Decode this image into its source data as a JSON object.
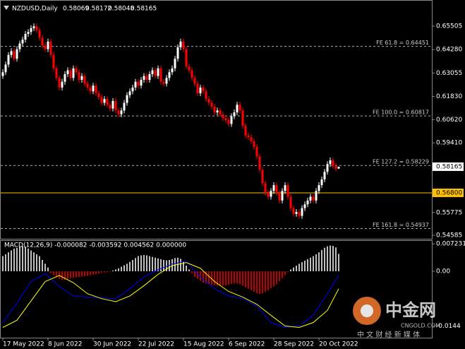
{
  "chart_data": [
    {
      "type": "candlestick",
      "title": "NZDUSD,Daily",
      "categories": [
        "17 May 2022",
        null,
        null,
        null,
        null,
        null,
        null,
        null,
        null,
        null,
        null,
        null,
        null,
        null,
        null,
        null,
        "8 Jun 2022",
        null,
        null,
        null,
        null,
        null,
        null,
        null,
        null,
        null,
        null,
        null,
        null,
        null,
        null,
        null,
        "30 Jun 2022",
        null,
        null,
        null,
        null,
        null,
        null,
        null,
        null,
        null,
        null,
        null,
        null,
        null,
        null,
        null,
        "22 Jul 2022",
        null,
        null,
        null,
        null,
        null,
        null,
        null,
        null,
        null,
        null,
        null,
        null,
        null,
        null,
        null,
        "15 Aug 2022",
        null,
        null,
        null,
        null,
        null,
        null,
        null,
        null,
        null,
        null,
        null,
        null,
        null,
        null,
        null,
        "6 Sep 2022",
        null,
        null,
        null,
        null,
        null,
        null,
        null,
        null,
        null,
        null,
        null,
        null,
        null,
        null,
        null,
        "28 Sep 2022",
        null,
        null,
        null,
        null,
        null,
        null,
        null,
        null,
        null,
        null,
        null,
        null,
        null,
        null,
        null,
        "20 Oct 2022",
        null,
        null,
        null,
        null,
        null,
        null,
        null
      ],
      "candles": [
        [
          0.629,
          0.6325,
          0.6275,
          0.631
        ],
        [
          0.631,
          0.6365,
          0.6295,
          0.635
        ],
        [
          0.635,
          0.6415,
          0.6335,
          0.64
        ],
        [
          0.64,
          0.6435,
          0.6385,
          0.642
        ],
        [
          0.642,
          0.6435,
          0.6365,
          0.638
        ],
        [
          0.638,
          0.6445,
          0.6365,
          0.643
        ],
        [
          0.643,
          0.6475,
          0.6415,
          0.646
        ],
        [
          0.646,
          0.6495,
          0.6445,
          0.648
        ],
        [
          0.648,
          0.6525,
          0.6465,
          0.651
        ],
        [
          0.651,
          0.6535,
          0.6495,
          0.652
        ],
        [
          0.652,
          0.6555,
          0.6505,
          0.654
        ],
        [
          0.654,
          0.6565,
          0.6525,
          0.655
        ],
        [
          0.655,
          0.6565,
          0.6515,
          0.653
        ],
        [
          0.653,
          0.6545,
          0.6475,
          0.649
        ],
        [
          0.649,
          0.6505,
          0.6435,
          0.645
        ],
        [
          0.645,
          0.6465,
          0.6415,
          0.643
        ],
        [
          0.643,
          0.6485,
          0.6415,
          0.647
        ],
        [
          0.647,
          0.6485,
          0.6385,
          0.64
        ],
        [
          0.64,
          0.6415,
          0.6315,
          0.633
        ],
        [
          0.633,
          0.6345,
          0.6265,
          0.628
        ],
        [
          0.628,
          0.6295,
          0.6215,
          0.623
        ],
        [
          0.623,
          0.6275,
          0.6215,
          0.626
        ],
        [
          0.626,
          0.6315,
          0.6245,
          0.63
        ],
        [
          0.63,
          0.6335,
          0.6285,
          0.632
        ],
        [
          0.632,
          0.6335,
          0.6265,
          0.628
        ],
        [
          0.628,
          0.6345,
          0.6265,
          0.633
        ],
        [
          0.633,
          0.6345,
          0.6295,
          0.631
        ],
        [
          0.631,
          0.6325,
          0.6255,
          0.627
        ],
        [
          0.627,
          0.6305,
          0.6255,
          0.629
        ],
        [
          0.629,
          0.6305,
          0.6235,
          0.625
        ],
        [
          0.625,
          0.6265,
          0.6215,
          0.623
        ],
        [
          0.623,
          0.6245,
          0.6195,
          0.621
        ],
        [
          0.621,
          0.6255,
          0.6195,
          0.624
        ],
        [
          0.624,
          0.6255,
          0.6185,
          0.62
        ],
        [
          0.62,
          0.6215,
          0.6165,
          0.618
        ],
        [
          0.618,
          0.6195,
          0.6135,
          0.615
        ],
        [
          0.615,
          0.6185,
          0.6135,
          0.617
        ],
        [
          0.617,
          0.6185,
          0.6125,
          0.614
        ],
        [
          0.614,
          0.6155,
          0.6105,
          0.612
        ],
        [
          0.612,
          0.6175,
          0.6105,
          0.616
        ],
        [
          0.616,
          0.6175,
          0.6095,
          0.611
        ],
        [
          0.611,
          0.6125,
          0.6075,
          0.609
        ],
        [
          0.609,
          0.6125,
          0.6075,
          0.611
        ],
        [
          0.611,
          0.6165,
          0.6095,
          0.615
        ],
        [
          0.615,
          0.6205,
          0.6135,
          0.619
        ],
        [
          0.619,
          0.6225,
          0.6175,
          0.621
        ],
        [
          0.621,
          0.6245,
          0.6195,
          0.623
        ],
        [
          0.623,
          0.6275,
          0.6215,
          0.626
        ],
        [
          0.626,
          0.6275,
          0.6225,
          0.624
        ],
        [
          0.624,
          0.6285,
          0.6225,
          0.627
        ],
        [
          0.627,
          0.6305,
          0.6255,
          0.629
        ],
        [
          0.629,
          0.6305,
          0.6255,
          0.627
        ],
        [
          0.627,
          0.6315,
          0.6255,
          0.63
        ],
        [
          0.63,
          0.6335,
          0.6285,
          0.632
        ],
        [
          0.632,
          0.6335,
          0.6275,
          0.629
        ],
        [
          0.629,
          0.6345,
          0.6275,
          0.633
        ],
        [
          0.633,
          0.6345,
          0.6245,
          0.626
        ],
        [
          0.626,
          0.6275,
          0.6235,
          0.625
        ],
        [
          0.625,
          0.6295,
          0.6235,
          0.628
        ],
        [
          0.628,
          0.6325,
          0.6265,
          0.631
        ],
        [
          0.631,
          0.6345,
          0.6295,
          0.633
        ],
        [
          0.633,
          0.6395,
          0.6315,
          0.638
        ],
        [
          0.638,
          0.6455,
          0.6365,
          0.644
        ],
        [
          0.644,
          0.6485,
          0.6425,
          0.647
        ],
        [
          0.647,
          0.6485,
          0.6415,
          0.643
        ],
        [
          0.643,
          0.6445,
          0.6325,
          0.634
        ],
        [
          0.634,
          0.6355,
          0.6305,
          0.632
        ],
        [
          0.632,
          0.6335,
          0.6265,
          0.628
        ],
        [
          0.628,
          0.6295,
          0.6235,
          0.625
        ],
        [
          0.625,
          0.6265,
          0.6185,
          0.62
        ],
        [
          0.62,
          0.6245,
          0.6185,
          0.623
        ],
        [
          0.623,
          0.6245,
          0.6195,
          0.621
        ],
        [
          0.621,
          0.6225,
          0.6155,
          0.617
        ],
        [
          0.617,
          0.6185,
          0.6135,
          0.615
        ],
        [
          0.615,
          0.6165,
          0.6115,
          0.613
        ],
        [
          0.613,
          0.6145,
          0.6085,
          0.61
        ],
        [
          0.61,
          0.6125,
          0.6085,
          0.611
        ],
        [
          0.611,
          0.6125,
          0.6075,
          0.609
        ],
        [
          0.609,
          0.6105,
          0.6055,
          0.607
        ],
        [
          0.607,
          0.6085,
          0.6045,
          0.606
        ],
        [
          0.606,
          0.6075,
          0.6025,
          0.604
        ],
        [
          0.604,
          0.6095,
          0.6025,
          0.608
        ],
        [
          0.608,
          0.6115,
          0.6065,
          0.61
        ],
        [
          0.61,
          0.6155,
          0.6085,
          0.614
        ],
        [
          0.614,
          0.6155,
          0.6095,
          0.611
        ],
        [
          0.611,
          0.6125,
          0.6015,
          0.603
        ],
        [
          0.603,
          0.6045,
          0.5965,
          0.598
        ],
        [
          0.598,
          0.5995,
          0.5955,
          0.597
        ],
        [
          0.597,
          0.5985,
          0.5935,
          0.595
        ],
        [
          0.595,
          0.5965,
          0.5905,
          0.592
        ],
        [
          0.592,
          0.5935,
          0.5855,
          0.587
        ],
        [
          0.587,
          0.5885,
          0.5785,
          0.58
        ],
        [
          0.58,
          0.5815,
          0.5715,
          0.573
        ],
        [
          0.573,
          0.5745,
          0.5665,
          0.568
        ],
        [
          0.568,
          0.5695,
          0.5645,
          0.566
        ],
        [
          0.566,
          0.5705,
          0.5645,
          0.569
        ],
        [
          0.569,
          0.5735,
          0.5675,
          0.572
        ],
        [
          0.572,
          0.5735,
          0.5665,
          0.568
        ],
        [
          0.568,
          0.5695,
          0.5625,
          0.564
        ],
        [
          0.564,
          0.5705,
          0.5625,
          0.569
        ],
        [
          0.569,
          0.5735,
          0.5675,
          0.572
        ],
        [
          0.572,
          0.5735,
          0.5645,
          0.566
        ],
        [
          0.566,
          0.5675,
          0.5585,
          0.56
        ],
        [
          0.56,
          0.5615,
          0.5555,
          0.557
        ],
        [
          0.557,
          0.5595,
          0.5555,
          0.558
        ],
        [
          0.558,
          0.5595,
          0.5545,
          0.556
        ],
        [
          0.556,
          0.5615,
          0.5545,
          0.56
        ],
        [
          0.56,
          0.5635,
          0.5585,
          0.562
        ],
        [
          0.562,
          0.5655,
          0.5605,
          0.564
        ],
        [
          0.564,
          0.5675,
          0.5625,
          0.566
        ],
        [
          0.566,
          0.5675,
          0.5625,
          0.564
        ],
        [
          0.564,
          0.5705,
          0.5625,
          0.569
        ],
        [
          0.569,
          0.5735,
          0.5675,
          0.572
        ],
        [
          0.572,
          0.5765,
          0.5705,
          0.575
        ],
        [
          0.575,
          0.5805,
          0.5735,
          0.579
        ],
        [
          0.579,
          0.5845,
          0.5775,
          0.583
        ],
        [
          0.583,
          0.5865,
          0.5815,
          0.585
        ],
        [
          0.585,
          0.5865,
          0.5805,
          0.582
        ],
        [
          0.582,
          0.5835,
          0.5792,
          0.58069
        ],
        [
          0.58069,
          0.58172,
          0.58048,
          0.58165
        ]
      ],
      "bull_color": "#ffffff",
      "bear_color": "#ff0000",
      "ylim": [
        0.54401,
        0.6687
      ],
      "yticks": [
        0.65505,
        {
          "value": 0.6428,
          "label": "0.64280"
        },
        0.63055,
        {
          "value": 0.6183,
          "label": "0.61830"
        },
        {
          "value": 0.6062,
          "label": "0.60620"
        },
        {
          "value": 0.5941,
          "label": "0.59410"
        },
        0.55775,
        0.54585
      ],
      "levels": [
        {
          "label": "FE 61.8 = 0.64451",
          "value": 0.64451
        },
        {
          "label": "FE 100.0 = 0.60817",
          "value": 0.60817
        },
        {
          "label": "FE 127.2 = 0.58229",
          "value": 0.58229
        },
        {
          "label": "FE 161.8 = 0.54937",
          "value": 0.54937
        }
      ],
      "hline": {
        "value": 0.568,
        "label": "0.56800",
        "color": "#ffc000"
      }
    },
    {
      "type": "macd",
      "title": "MACD(12,26,9) -0.000082 -0.003592 0.004562 0.000000",
      "histogram": [
        0.004,
        0.0045,
        0.005,
        0.0055,
        0.006,
        0.0062,
        0.0065,
        0.0066,
        0.0065,
        0.006,
        0.0055,
        0.005,
        0.0045,
        0.004,
        0.003,
        0.002,
        0.001,
        -0.0005,
        -0.001,
        -0.0015,
        -0.002,
        -0.0022,
        -0.0022,
        -0.002,
        -0.0018,
        -0.0017,
        -0.0016,
        -0.0015,
        -0.0014,
        -0.0013,
        -0.0012,
        -0.001,
        -0.0009,
        -0.0008,
        -0.0006,
        -0.0004,
        -0.0003,
        -0.0002,
        -0.0001,
        0.0002,
        0.0005,
        0.0008,
        0.0012,
        0.0016,
        0.002,
        0.0025,
        0.003,
        0.0035,
        0.004,
        0.0042,
        0.0043,
        0.0042,
        0.004,
        0.0038,
        0.0036,
        0.0034,
        0.0032,
        0.003,
        0.0029,
        0.003,
        0.0032,
        0.0035,
        0.0036,
        0.0033,
        0.0025,
        0.0015,
        0.0005,
        -0.0005,
        -0.0015,
        -0.002,
        -0.0025,
        -0.003,
        -0.0032,
        -0.0034,
        -0.0036,
        -0.0037,
        -0.0038,
        -0.0038,
        -0.0038,
        -0.0037,
        -0.0035,
        -0.0033,
        -0.0032,
        -0.0032,
        -0.0034,
        -0.0038,
        -0.0042,
        -0.0046,
        -0.005,
        -0.0054,
        -0.0058,
        -0.006,
        -0.0058,
        -0.0054,
        -0.005,
        -0.0045,
        -0.004,
        -0.0034,
        -0.0026,
        -0.0018,
        -0.001,
        -0.0002,
        0.0005,
        0.001,
        0.0015,
        0.002,
        0.0024,
        0.0028,
        0.0032,
        0.0036,
        0.004,
        0.0045,
        0.005,
        0.0056,
        0.0062,
        0.0066,
        0.0068,
        0.0067,
        0.0063,
        0.0046
      ],
      "pos_color": "#ffffff",
      "neg_color": "#ff0000",
      "x": [
        0,
        5,
        10,
        15,
        20,
        25,
        30,
        35,
        40,
        45,
        50,
        55,
        60,
        65,
        70,
        75,
        80,
        85,
        90,
        95,
        100,
        105,
        110,
        115,
        119
      ],
      "series": [
        {
          "color": "#0000ff",
          "values": [
            -0.0135,
            -0.0084,
            -0.0027,
            -0.0006,
            -0.004,
            -0.0065,
            -0.0068,
            -0.007,
            -0.0072,
            -0.0046,
            -0.0015,
            0.0004,
            0.0019,
            0.0027,
            -0.0015,
            -0.0046,
            -0.0065,
            -0.0072,
            -0.0091,
            -0.0135,
            -0.0148,
            -0.0144,
            -0.0116,
            -0.0059,
            -0.0011
          ]
        },
        {
          "color": "#ffff00",
          "values": [
            -0.0148,
            -0.0129,
            -0.0078,
            -0.0027,
            -0.0011,
            -0.003,
            -0.0059,
            -0.0072,
            -0.008,
            -0.0065,
            -0.0038,
            -0.0008,
            0.0015,
            0.0023,
            0.0008,
            -0.0027,
            -0.0053,
            -0.0068,
            -0.0087,
            -0.0116,
            -0.0144,
            -0.0148,
            -0.0135,
            -0.0103,
            -0.0046
          ]
        }
      ],
      "ylim": [
        -0.0175,
        0.0082
      ],
      "yticks": [
        0.007231,
        {
          "value": 0,
          "label": "0.00"
        },
        -0.0144
      ]
    }
  ],
  "watermark": {
    "name": "中金网",
    "url": "CNGOLD.COM",
    "tagline": "中 文 财 经 新 媒 体"
  }
}
